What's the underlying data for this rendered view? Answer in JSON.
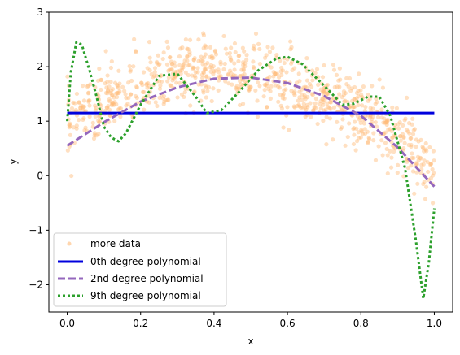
{
  "chart_data": {
    "type": "scatter+line",
    "xlabel": "x",
    "ylabel": "y",
    "xlim": [
      -0.05,
      1.05
    ],
    "ylim": [
      -2.5,
      3.0
    ],
    "x_ticks": [
      0.0,
      0.2,
      0.4,
      0.6,
      0.8,
      1.0
    ],
    "x_tick_labels": [
      "0.0",
      "0.2",
      "0.4",
      "0.6",
      "0.8",
      "1.0"
    ],
    "y_ticks": [
      -2,
      -1,
      0,
      1,
      2,
      3
    ],
    "y_tick_labels": [
      "−2",
      "−1",
      "0",
      "1",
      "2",
      "3"
    ],
    "grid": false,
    "legend_position": "lower-left",
    "scatter": {
      "name": "more data",
      "color": "#ffbb78",
      "trend_points": [
        [
          0.0,
          1.0
        ],
        [
          0.1,
          1.35
        ],
        [
          0.2,
          1.6
        ],
        [
          0.3,
          1.85
        ],
        [
          0.4,
          1.92
        ],
        [
          0.5,
          1.88
        ],
        [
          0.6,
          1.72
        ],
        [
          0.7,
          1.45
        ],
        [
          0.8,
          1.15
        ],
        [
          0.9,
          0.72
        ],
        [
          1.0,
          0.1
        ]
      ],
      "noise_sd": 0.3,
      "count": 900
    },
    "series": [
      {
        "name": "0th degree polynomial",
        "color": "#0000dd",
        "style": "solid",
        "points": [
          [
            0.0,
            1.15
          ],
          [
            1.0,
            1.15
          ]
        ]
      },
      {
        "name": "2nd degree polynomial",
        "color": "#9467bd",
        "style": "dashed",
        "points": [
          [
            0.0,
            0.55
          ],
          [
            0.1,
            0.98
          ],
          [
            0.2,
            1.36
          ],
          [
            0.3,
            1.62
          ],
          [
            0.4,
            1.78
          ],
          [
            0.5,
            1.8
          ],
          [
            0.6,
            1.7
          ],
          [
            0.7,
            1.46
          ],
          [
            0.8,
            1.1
          ],
          [
            0.9,
            0.52
          ],
          [
            1.0,
            -0.2
          ]
        ]
      },
      {
        "name": "9th degree polynomial",
        "color": "#2ca02c",
        "style": "dotted",
        "points": [
          [
            0.0,
            1.0
          ],
          [
            0.01,
            1.9
          ],
          [
            0.025,
            2.45
          ],
          [
            0.04,
            2.4
          ],
          [
            0.06,
            1.95
          ],
          [
            0.08,
            1.45
          ],
          [
            0.1,
            0.9
          ],
          [
            0.12,
            0.7
          ],
          [
            0.14,
            0.63
          ],
          [
            0.16,
            0.78
          ],
          [
            0.2,
            1.3
          ],
          [
            0.25,
            1.83
          ],
          [
            0.3,
            1.87
          ],
          [
            0.35,
            1.45
          ],
          [
            0.38,
            1.15
          ],
          [
            0.42,
            1.2
          ],
          [
            0.47,
            1.55
          ],
          [
            0.52,
            1.93
          ],
          [
            0.57,
            2.15
          ],
          [
            0.6,
            2.18
          ],
          [
            0.64,
            2.05
          ],
          [
            0.7,
            1.65
          ],
          [
            0.75,
            1.3
          ],
          [
            0.78,
            1.32
          ],
          [
            0.82,
            1.45
          ],
          [
            0.85,
            1.45
          ],
          [
            0.88,
            1.1
          ],
          [
            0.92,
            0.15
          ],
          [
            0.95,
            -1.2
          ],
          [
            0.97,
            -2.25
          ],
          [
            0.985,
            -1.6
          ],
          [
            1.0,
            -0.6
          ]
        ]
      }
    ]
  }
}
